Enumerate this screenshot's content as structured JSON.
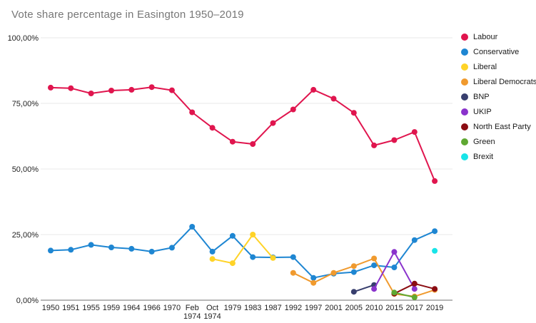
{
  "chart_data": {
    "type": "line",
    "title": "Vote share percentage in Easington 1950–2019",
    "xlabel": "",
    "ylabel": "",
    "ylim": [
      0,
      100
    ],
    "grid": true,
    "legend_position": "right",
    "y_ticks": [
      {
        "value": 100,
        "label": "100,00%"
      },
      {
        "value": 75,
        "label": "75,00%"
      },
      {
        "value": 50,
        "label": "50,00%"
      },
      {
        "value": 25,
        "label": "25,00%"
      },
      {
        "value": 0,
        "label": "0,00%"
      }
    ],
    "categories": [
      "1950",
      "1951",
      "1955",
      "1959",
      "1964",
      "1966",
      "1970",
      "Feb 1974",
      "Oct 1974",
      "1979",
      "1983",
      "1987",
      "1992",
      "1997",
      "2001",
      "2005",
      "2010",
      "2015",
      "2017",
      "2019"
    ],
    "series": [
      {
        "name": "Labour",
        "color": "#E0154E",
        "values": [
          81.0,
          80.8,
          78.8,
          79.9,
          80.2,
          81.2,
          80.0,
          71.6,
          65.7,
          60.4,
          59.5,
          67.5,
          72.7,
          80.2,
          76.8,
          71.4,
          59.0,
          61.0,
          64.1,
          45.4
        ]
      },
      {
        "name": "Conservative",
        "color": "#1E86D2",
        "values": [
          18.9,
          19.2,
          21.1,
          20.1,
          19.6,
          18.5,
          20.0,
          28.0,
          18.5,
          24.5,
          16.4,
          16.3,
          16.4,
          8.5,
          10.1,
          10.7,
          13.3,
          12.5,
          22.9,
          26.3
        ]
      },
      {
        "name": "Liberal",
        "color": "#FFD327",
        "values": [
          null,
          null,
          null,
          null,
          null,
          null,
          null,
          null,
          15.7,
          14.1,
          25.0,
          16.1,
          null,
          null,
          null,
          null,
          null,
          null,
          null,
          null
        ]
      },
      {
        "name": "Liberal Democrats",
        "color": "#F09A2E",
        "values": [
          null,
          null,
          null,
          null,
          null,
          null,
          null,
          null,
          null,
          null,
          null,
          null,
          10.4,
          6.6,
          10.4,
          13.0,
          15.9,
          2.4,
          1.4,
          3.9
        ]
      },
      {
        "name": "BNP",
        "color": "#383F6E",
        "values": [
          null,
          null,
          null,
          null,
          null,
          null,
          null,
          null,
          null,
          null,
          null,
          null,
          null,
          null,
          null,
          3.2,
          5.8,
          null,
          null,
          null
        ]
      },
      {
        "name": "UKIP",
        "color": "#8A33CC",
        "values": [
          null,
          null,
          null,
          null,
          null,
          null,
          null,
          null,
          null,
          null,
          null,
          null,
          null,
          null,
          null,
          null,
          4.3,
          18.4,
          4.3,
          null
        ]
      },
      {
        "name": "North East Party",
        "color": "#8B0D13",
        "values": [
          null,
          null,
          null,
          null,
          null,
          null,
          null,
          null,
          null,
          null,
          null,
          null,
          null,
          null,
          null,
          null,
          null,
          2.5,
          6.3,
          4.3
        ]
      },
      {
        "name": "Green",
        "color": "#5FA832",
        "values": [
          null,
          null,
          null,
          null,
          null,
          null,
          null,
          null,
          null,
          null,
          null,
          null,
          null,
          null,
          null,
          null,
          null,
          2.9,
          1.1,
          null
        ]
      },
      {
        "name": "Brexit",
        "color": "#18E4E8",
        "values": [
          null,
          null,
          null,
          null,
          null,
          null,
          null,
          null,
          null,
          null,
          null,
          null,
          null,
          null,
          null,
          null,
          null,
          null,
          null,
          18.8
        ]
      }
    ],
    "axis_colors": {
      "gridline": "#e8e8e8",
      "baseline": "#6f6f6f",
      "tick_text": "#1f1f1f"
    }
  }
}
